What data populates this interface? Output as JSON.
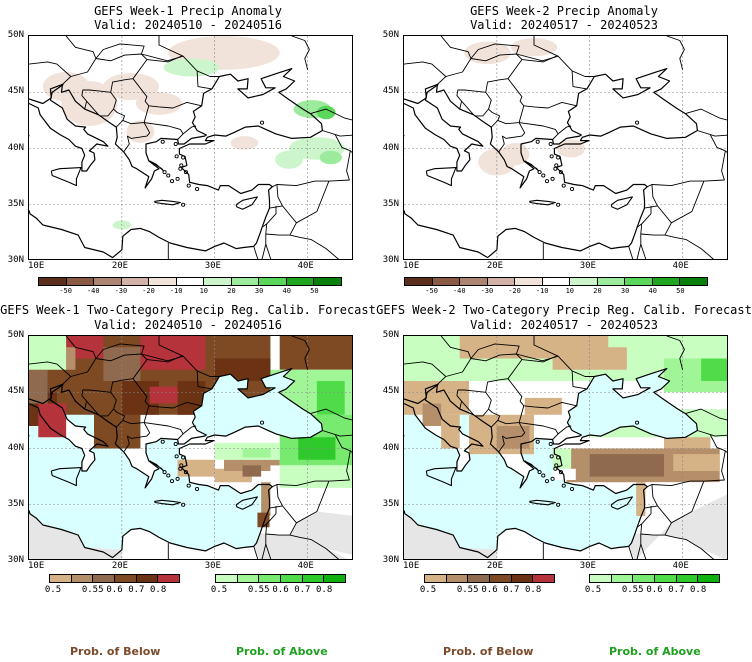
{
  "panels": [
    {
      "title": "GEFS Week-1 Precip Anomaly",
      "valid": "Valid: 20240510 - 20240516"
    },
    {
      "title": "GEFS Week-2 Precip Anomaly",
      "valid": "Valid: 20240517 - 20240523"
    },
    {
      "title": "GEFS Week-1 Two-Category Precip Reg. Calib. Forecast",
      "valid": "Valid: 20240510 - 20240516"
    },
    {
      "title": "GEFS Week-2 Two-Category Precip Reg. Calib. Forecast",
      "valid": "Valid: 20240517 - 20240523"
    }
  ],
  "lat_labels": [
    "50N",
    "45N",
    "40N",
    "35N",
    "30N"
  ],
  "lon_labels": [
    "10E",
    "20E",
    "30E",
    "40E"
  ],
  "anomaly_scale": {
    "ticks": [
      "-50",
      "-40",
      "-30",
      "-20",
      "-10",
      "10",
      "20",
      "30",
      "40",
      "50"
    ],
    "colors": [
      "#5c2e1c",
      "#8a5a44",
      "#ad8472",
      "#d2b2a6",
      "#f1e2da",
      "#ffffff",
      "#ccf5cc",
      "#9ceb9c",
      "#5ad65a",
      "#1fa51f",
      "#0b7f0b"
    ]
  },
  "below_scale": {
    "ticks": [
      "0.5",
      "0.55",
      "0.6",
      "0.7",
      "0.8"
    ],
    "colors": [
      "#d6b287",
      "#b58f6a",
      "#8f6a4f",
      "#7d4a24",
      "#6b3314",
      "#b5333a"
    ]
  },
  "above_scale": {
    "ticks": [
      "0.5",
      "0.55",
      "0.6",
      "0.7",
      "0.8"
    ],
    "colors": [
      "#c8ffc0",
      "#a0f597",
      "#79ea70",
      "#4fdc48",
      "#2ec92b",
      "#11b011"
    ]
  },
  "labels": {
    "prob_below": "Prob. of Below",
    "prob_above": "Prob. of Above",
    "prob_below_color": "#7a4a2a",
    "prob_above_color": "#20a020"
  },
  "map_colors": {
    "sea": "#d9ffff",
    "no_data": "#e6e6e6"
  }
}
